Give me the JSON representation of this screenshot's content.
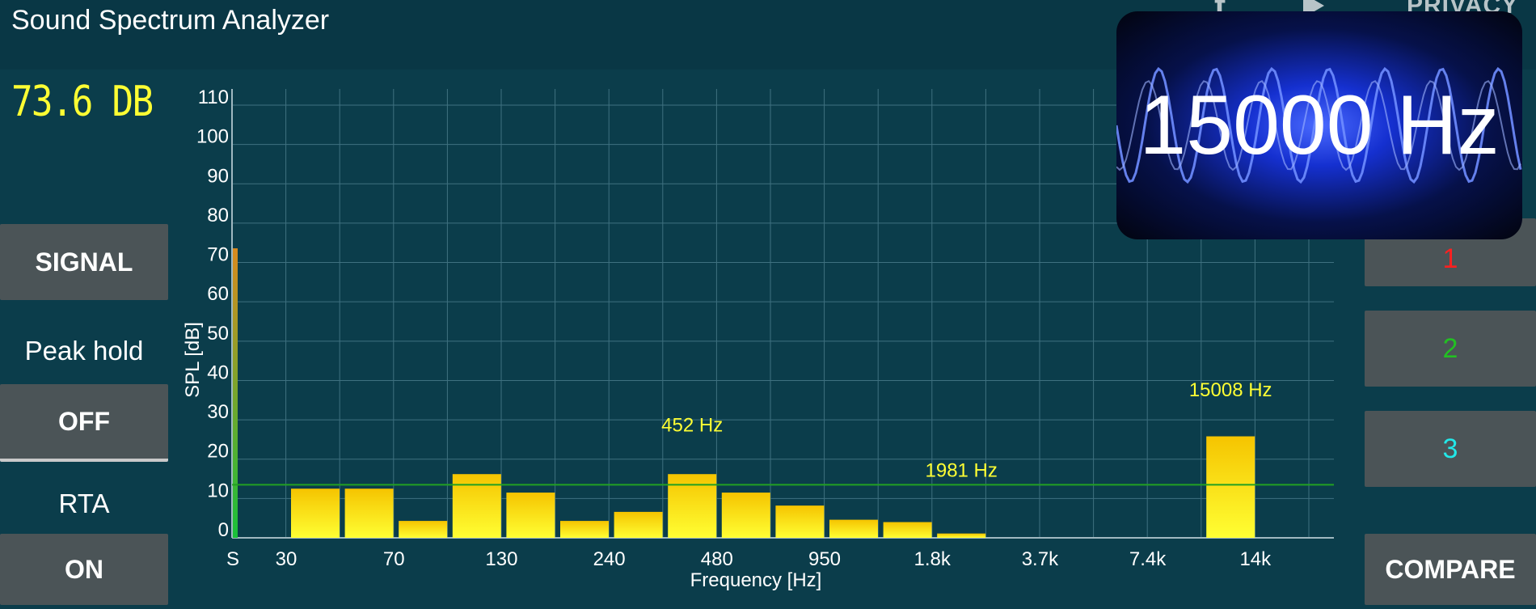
{
  "app": {
    "title": "Sound Spectrum Analyzer"
  },
  "topbar": {
    "privacy_label": "PRIVACY",
    "fb_icon": "facebook-icon",
    "play_icon": "play-store-icon"
  },
  "left": {
    "db_readout": "73.6 DB",
    "signal_button": "SIGNAL",
    "peak_hold_label": "Peak hold",
    "peak_hold_button": "OFF",
    "rta_label": "RTA",
    "rta_button": "ON"
  },
  "right": {
    "mem1": "1",
    "mem2": "2",
    "mem3": "3",
    "compare": "COMPARE"
  },
  "overlay": {
    "text": "15000 Hz"
  },
  "colors": {
    "background": "#0b3d4b",
    "bar_top": "#f5c400",
    "bar_bottom": "#ffff33",
    "annotation": "#ffff33",
    "threshold_line": "#22a022"
  },
  "chart_data": {
    "type": "bar",
    "xlabel": "Frequency [Hz]",
    "ylabel": "SPL [dB]",
    "ylim": [
      0,
      110
    ],
    "yticks": [
      0,
      10,
      20,
      30,
      40,
      50,
      60,
      70,
      80,
      90,
      100,
      110
    ],
    "xtick_labels": [
      "S",
      "30",
      "70",
      "130",
      "240",
      "480",
      "950",
      "1.8k",
      "3.7k",
      "7.4k",
      "14k"
    ],
    "signal_level": 73.6,
    "threshold": 13.5,
    "bars": [
      {
        "band": "50",
        "value": 12.5
      },
      {
        "band": "70",
        "value": 12.5
      },
      {
        "band": "100",
        "value": 4.3
      },
      {
        "band": "130",
        "value": 16.2
      },
      {
        "band": "180",
        "value": 11.5
      },
      {
        "band": "240",
        "value": 4.3
      },
      {
        "band": "340",
        "value": 6.6
      },
      {
        "band": "480",
        "value": 16.2
      },
      {
        "band": "680",
        "value": 11.5
      },
      {
        "band": "950",
        "value": 8.2
      },
      {
        "band": "1.3k",
        "value": 4.6
      },
      {
        "band": "1.8k",
        "value": 4.0
      },
      {
        "band": "2.6k",
        "value": 1.1
      },
      {
        "band": "3.7k",
        "value": 0
      },
      {
        "band": "5.2k",
        "value": 0
      },
      {
        "band": "7.4k",
        "value": 0
      },
      {
        "band": "10k",
        "value": 0
      },
      {
        "band": "14k",
        "value": 25.8
      }
    ],
    "annotations": [
      {
        "text": "452 Hz",
        "band": "480",
        "value": 27
      },
      {
        "text": "1981 Hz",
        "band": "2.6k",
        "value": 15.5
      },
      {
        "text": "15008 Hz",
        "band": "14k",
        "value": 36
      }
    ]
  }
}
